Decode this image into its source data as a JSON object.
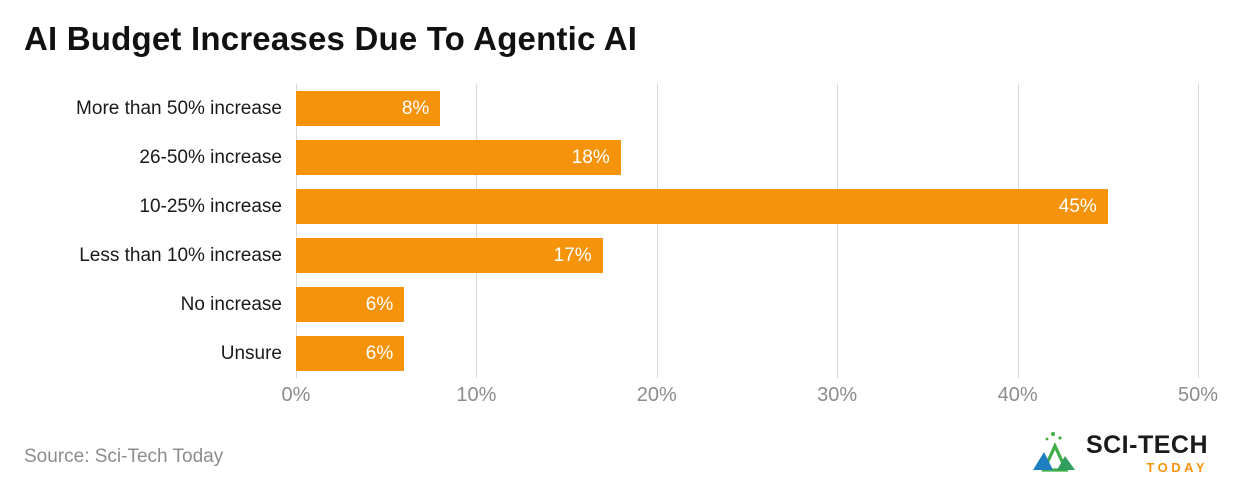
{
  "title": "AI Budget Increases Due To Agentic AI",
  "source": "Source: Sci-Tech Today",
  "logo": {
    "line1": "SCI-TECH",
    "line2": "TODAY"
  },
  "colors": {
    "bar": "#F5930B",
    "title_text": "#111111",
    "category_text": "#1a1a1a",
    "axis_text": "#8c8c8c",
    "gridline": "#d9d9d9",
    "value_text": "#ffffff",
    "background": "#ffffff",
    "logo_green": "#3fae49",
    "logo_blue": "#1f7ec2"
  },
  "chart_data": {
    "type": "bar",
    "orientation": "horizontal",
    "title": "AI Budget Increases Due To Agentic AI",
    "categories": [
      "More than 50% increase",
      "26-50% increase",
      "10-25% increase",
      "Less than 10% increase",
      "No increase",
      "Unsure"
    ],
    "values": [
      8,
      18,
      45,
      17,
      6,
      6
    ],
    "value_labels": [
      "8%",
      "18%",
      "45%",
      "17%",
      "6%",
      "6%"
    ],
    "xlabel": "",
    "ylabel": "",
    "xlim": [
      0,
      50
    ],
    "x_ticks": [
      0,
      10,
      20,
      30,
      40,
      50
    ],
    "x_tick_labels": [
      "0%",
      "10%",
      "20%",
      "30%",
      "40%",
      "50%"
    ],
    "grid": true,
    "legend": false
  }
}
